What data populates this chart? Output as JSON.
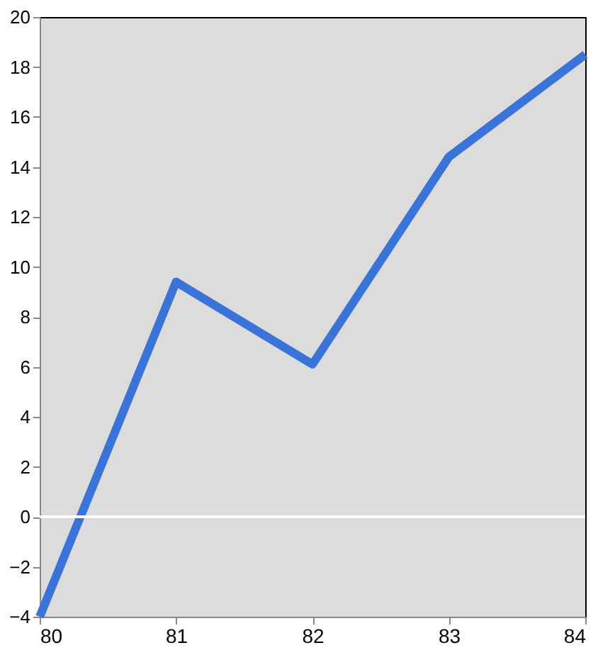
{
  "chart_data": {
    "type": "line",
    "x": [
      80,
      81,
      82,
      83,
      84
    ],
    "series": [
      {
        "color": "#3b74d9",
        "values": [
          -4,
          9.4,
          6.1,
          14.4,
          18.5
        ]
      }
    ],
    "xlim": [
      80,
      84
    ],
    "xticks": [
      80,
      81,
      82,
      83,
      84
    ],
    "ylim": [
      -4,
      20
    ],
    "yticks": [
      -4,
      -2,
      0,
      2,
      4,
      6,
      8,
      10,
      12,
      14,
      16,
      18,
      20
    ],
    "ref_lines": [
      {
        "axis": "y",
        "value": 0,
        "color": "#ffffff"
      }
    ],
    "grid": false,
    "marker": "none",
    "line_style": "solid"
  }
}
